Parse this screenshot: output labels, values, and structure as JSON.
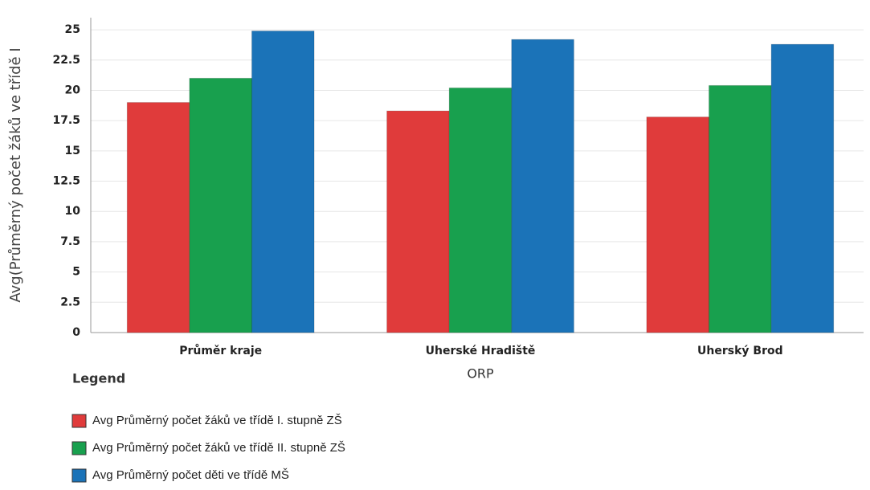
{
  "chart_data": {
    "type": "bar",
    "y_label": "Avg(Průměrný počet žáků ve třídě I",
    "x_label": "ORP",
    "legend_title": "Legend",
    "categories": [
      "Průměr kraje",
      "Uherské Hradiště",
      "Uherský Brod"
    ],
    "series": [
      {
        "name": "Avg Průměrný počet žáků ve třídě I. stupně ZŠ",
        "color": "#e03b3b",
        "values": [
          19.0,
          18.3,
          17.8
        ]
      },
      {
        "name": "Avg Průměrný počet žáků ve třídě II. stupně ZŠ",
        "color": "#18a04e",
        "values": [
          21.0,
          20.2,
          20.4
        ]
      },
      {
        "name": "Avg Průměrný počet děti ve třídě MŠ",
        "color": "#1b73b8",
        "values": [
          24.9,
          24.2,
          23.8
        ]
      }
    ],
    "ylim": [
      0,
      26
    ],
    "yticks": [
      0,
      2.5,
      5,
      7.5,
      10,
      12.5,
      15,
      17.5,
      20,
      22.5,
      25
    ],
    "grid": true
  }
}
